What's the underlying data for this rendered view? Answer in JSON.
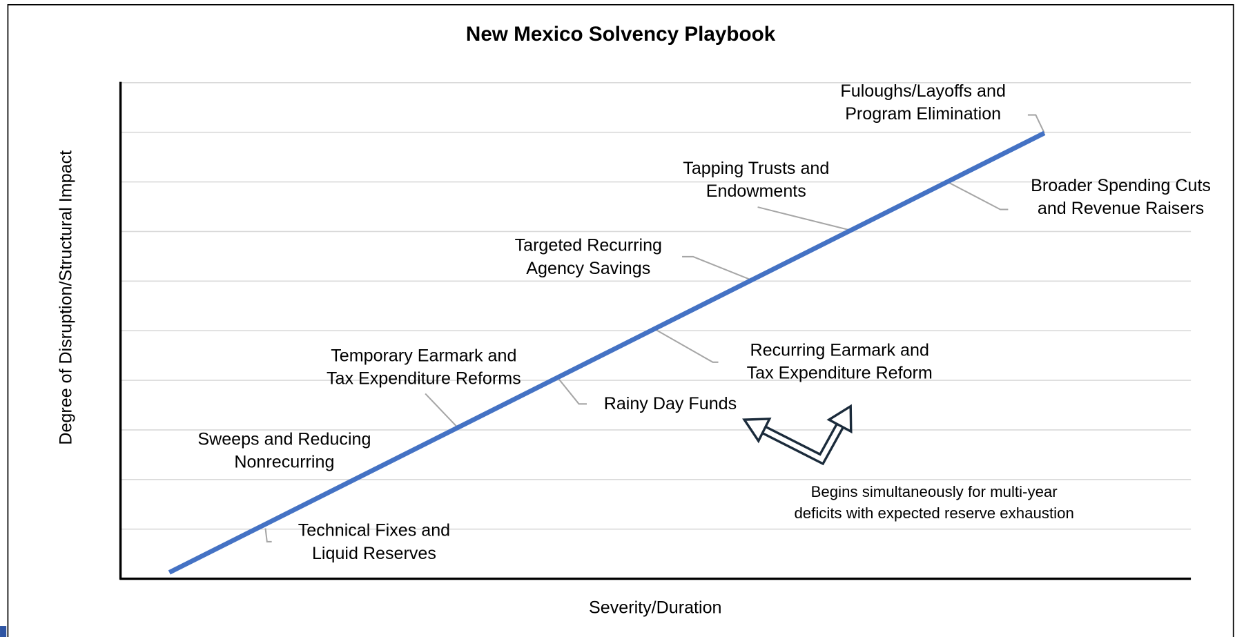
{
  "title": "New Mexico Solvency Playbook",
  "x_axis_label": "Severity/Duration",
  "y_axis_label": "Degree of Disruption/Structural Impact",
  "stages": [
    {
      "lines": [
        "Technical Fixes and",
        "Liquid Reserves"
      ]
    },
    {
      "lines": [
        "Sweeps and Reducing",
        "Nonrecurring"
      ]
    },
    {
      "lines": [
        "Temporary Earmark and",
        "Tax Expenditure Reforms"
      ]
    },
    {
      "lines": [
        "Rainy Day Funds"
      ]
    },
    {
      "lines": [
        "Recurring Earmark and",
        "Tax Expenditure Reform"
      ]
    },
    {
      "lines": [
        "Targeted Recurring",
        "Agency Savings"
      ]
    },
    {
      "lines": [
        "Tapping Trusts and",
        "Endowments"
      ]
    },
    {
      "lines": [
        "Broader Spending Cuts",
        "and Revenue Raisers"
      ]
    },
    {
      "lines": [
        "Fuloughs/Layoffs and",
        "Program Elimination"
      ]
    }
  ],
  "note": [
    "Begins simultaneously for multi-year",
    "deficits with expected reserve exhaustion"
  ]
}
